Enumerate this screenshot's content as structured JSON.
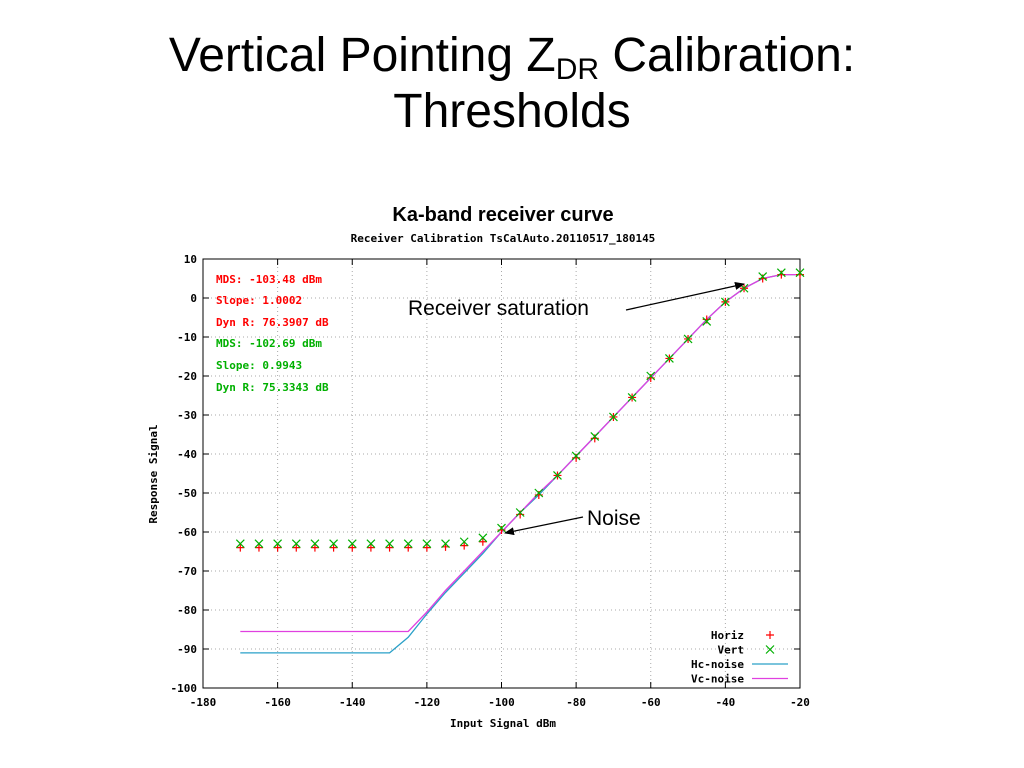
{
  "slide": {
    "title_part1": "Vertical Pointing Z",
    "title_sub": "DR",
    "title_part2": " Calibration:",
    "title_line2": "Thresholds"
  },
  "chart_data": {
    "type": "line",
    "title": "Ka-band receiver curve",
    "subtitle": "Receiver Calibration TsCalAuto.20110517_180145",
    "xlabel": "Input Signal dBm",
    "ylabel": "Response Signal",
    "xlim": [
      -180,
      -20
    ],
    "ylim": [
      -100,
      10
    ],
    "xticks": [
      -180,
      -160,
      -140,
      -120,
      -100,
      -80,
      -60,
      -40,
      -20
    ],
    "yticks": [
      10,
      0,
      -10,
      -20,
      -30,
      -40,
      -50,
      -60,
      -70,
      -80,
      -90,
      -100
    ],
    "grid": true,
    "legend_position": "bottom-right",
    "colors": {
      "horiz": "#ff0000",
      "vert": "#00b000",
      "hc_noise": "#2aa0c8",
      "vc_noise": "#e040e0",
      "annotation": "#000000"
    },
    "stats_h": [
      "MDS: -103.48 dBm",
      "Slope: 1.0002",
      "Dyn R: 76.3907 dB"
    ],
    "stats_v": [
      "MDS: -102.69 dBm",
      "Slope: 0.9943",
      "Dyn R: 75.3343 dB"
    ],
    "annotations": [
      "Receiver saturation",
      "Noise"
    ],
    "series": [
      {
        "name": "Horiz",
        "style": "points",
        "marker": "plus",
        "color": "#ff0000",
        "x": [
          -170,
          -165,
          -160,
          -155,
          -150,
          -145,
          -140,
          -135,
          -130,
          -125,
          -120,
          -115,
          -110,
          -105,
          -100,
          -95,
          -90,
          -85,
          -80,
          -75,
          -70,
          -65,
          -60,
          -55,
          -50,
          -45,
          -40,
          -35,
          -30,
          -25,
          -20
        ],
        "y": [
          -64,
          -64,
          -64,
          -64,
          -64,
          -64,
          -64,
          -64,
          -64,
          -64,
          -64,
          -63.8,
          -63.5,
          -62.5,
          -59.5,
          -55.5,
          -50.5,
          -45.5,
          -41,
          -36,
          -30.5,
          -25.5,
          -20.5,
          -15.5,
          -10.5,
          -5.5,
          -1,
          2.5,
          5,
          6,
          6
        ]
      },
      {
        "name": "Vert",
        "style": "points",
        "marker": "cross",
        "color": "#00b000",
        "x": [
          -170,
          -165,
          -160,
          -155,
          -150,
          -145,
          -140,
          -135,
          -130,
          -125,
          -120,
          -115,
          -110,
          -105,
          -100,
          -95,
          -90,
          -85,
          -80,
          -75,
          -70,
          -65,
          -60,
          -55,
          -50,
          -45,
          -40,
          -35,
          -30,
          -25,
          -20
        ],
        "y": [
          -63,
          -63,
          -63,
          -63,
          -63,
          -63,
          -63,
          -63,
          -63,
          -63,
          -63,
          -63,
          -62.5,
          -61.5,
          -59,
          -55,
          -50,
          -45.5,
          -40.5,
          -35.5,
          -30.5,
          -25.5,
          -20,
          -15.5,
          -10.5,
          -6,
          -1,
          2.5,
          5.5,
          6.5,
          6.5
        ]
      },
      {
        "name": "Hc-noise",
        "style": "line",
        "color": "#2aa0c8",
        "x": [
          -170,
          -130,
          -125,
          -120,
          -115,
          -110,
          -105,
          -100,
          -95,
          -90,
          -85,
          -80,
          -75,
          -70,
          -65,
          -60,
          -55,
          -50,
          -45,
          -40,
          -35,
          -30,
          -25,
          -20
        ],
        "y": [
          -91,
          -91,
          -87,
          -81,
          -75.5,
          -70.5,
          -65.5,
          -60,
          -55,
          -50.5,
          -45.5,
          -40.5,
          -35.5,
          -30.5,
          -25.5,
          -20.5,
          -15.5,
          -10.5,
          -5.5,
          -1,
          2.5,
          5,
          6,
          6
        ]
      },
      {
        "name": "Vc-noise",
        "style": "line",
        "color": "#e040e0",
        "x": [
          -170,
          -125,
          -120,
          -115,
          -110,
          -105,
          -100,
          -95,
          -90,
          -85,
          -80,
          -75,
          -70,
          -65,
          -60,
          -55,
          -50,
          -45,
          -40,
          -35,
          -30,
          -25,
          -20
        ],
        "y": [
          -85.5,
          -85.5,
          -80.5,
          -75,
          -70,
          -65,
          -60,
          -55,
          -50,
          -45.5,
          -40.5,
          -35.5,
          -30.5,
          -25.5,
          -20.5,
          -15.5,
          -10.5,
          -5.5,
          -1,
          2.5,
          5,
          6,
          6
        ]
      }
    ]
  }
}
